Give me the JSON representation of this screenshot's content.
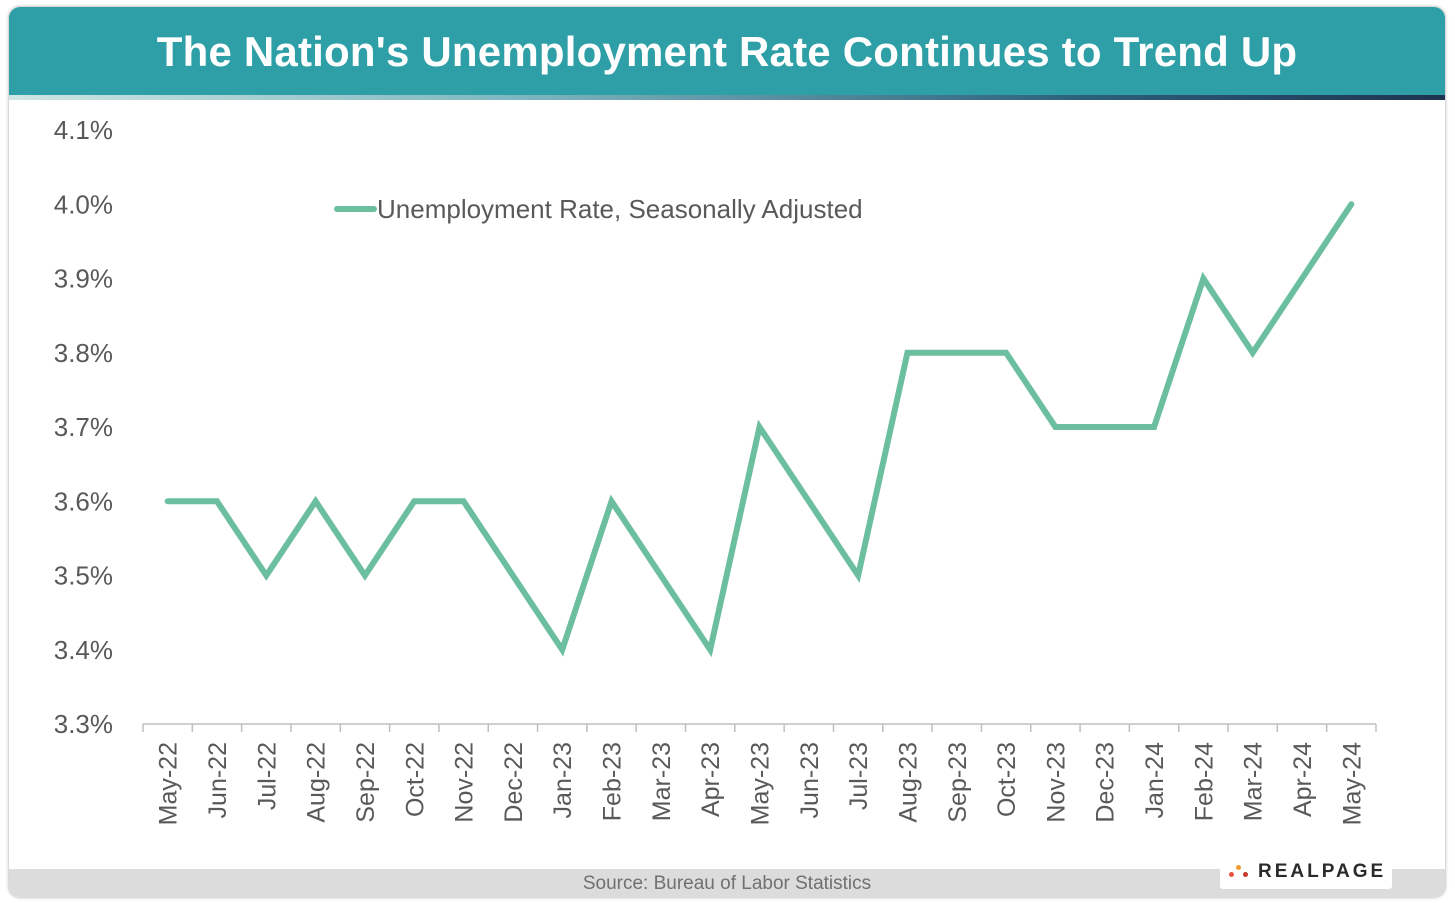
{
  "header": {
    "title": "The Nation's Unemployment Rate Continues to Trend Up"
  },
  "footer": {
    "source": "Source: Bureau of Labor Statistics"
  },
  "logo": {
    "text": "REALPAGE"
  },
  "colors": {
    "header_bg": "#2e9fa7",
    "line": "#6cbf9e",
    "axis_text": "#595959",
    "logo_dot_1": "#e8543f",
    "logo_dot_2": "#f29a2e",
    "logo_dot_3": "#c43a2d"
  },
  "chart_data": {
    "type": "line",
    "title": "The Nation's Unemployment Rate Continues to Trend Up",
    "xlabel": "",
    "ylabel": "",
    "ylim": [
      3.3,
      4.1
    ],
    "yticks": [
      "3.3%",
      "3.4%",
      "3.5%",
      "3.6%",
      "3.7%",
      "3.8%",
      "3.9%",
      "4.0%",
      "4.1%"
    ],
    "categories": [
      "May-22",
      "Jun-22",
      "Jul-22",
      "Aug-22",
      "Sep-22",
      "Oct-22",
      "Nov-22",
      "Dec-22",
      "Jan-23",
      "Feb-23",
      "Mar-23",
      "Apr-23",
      "May-23",
      "Jun-23",
      "Jul-23",
      "Aug-23",
      "Sep-23",
      "Oct-23",
      "Nov-23",
      "Dec-23",
      "Jan-24",
      "Feb-24",
      "Mar-24",
      "Apr-24",
      "May-24"
    ],
    "series": [
      {
        "name": "Unemployment Rate, Seasonally Adjusted",
        "values": [
          3.6,
          3.6,
          3.5,
          3.6,
          3.5,
          3.6,
          3.6,
          3.5,
          3.4,
          3.6,
          3.5,
          3.4,
          3.7,
          3.6,
          3.5,
          3.8,
          3.8,
          3.8,
          3.7,
          3.7,
          3.7,
          3.9,
          3.8,
          3.9,
          4.0
        ]
      }
    ],
    "legend": "top-left",
    "grid": false
  }
}
